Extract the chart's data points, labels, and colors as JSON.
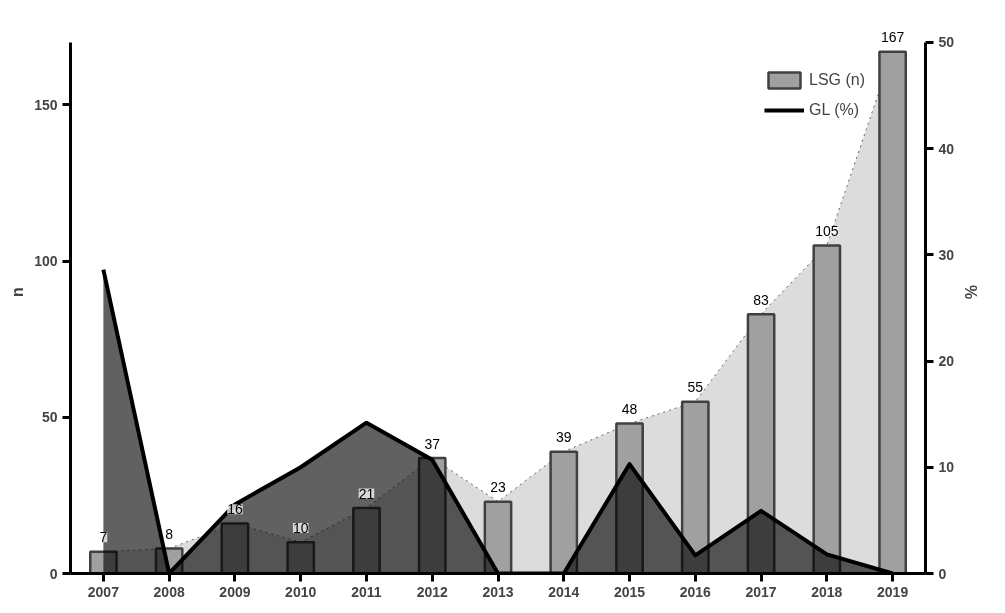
{
  "chart_data": {
    "type": "bar",
    "categories": [
      "2007",
      "2008",
      "2009",
      "2010",
      "2011",
      "2012",
      "2013",
      "2014",
      "2015",
      "2016",
      "2017",
      "2018",
      "2019"
    ],
    "series": [
      {
        "type": "area",
        "color": "#dcdcdc",
        "line_style": "dotted",
        "values": [
          7,
          8,
          16,
          10,
          21,
          37,
          23,
          39,
          48,
          55,
          83,
          105,
          167
        ]
      },
      {
        "name": "LSG (n)",
        "color": "#a0a0a0",
        "values": [
          7,
          8,
          16,
          10,
          21,
          37,
          23,
          39,
          48,
          55,
          83,
          105,
          167
        ],
        "value_labels": [
          "7",
          "8",
          "16",
          "10",
          "21",
          "37",
          "23",
          "39",
          "48",
          "55",
          "83",
          "105",
          "167"
        ]
      },
      {
        "type": "area",
        "name": "GL (%)",
        "axis": "y2",
        "color": "#000000",
        "line_style": "solid",
        "values": [
          28.6,
          0,
          6.5,
          10.0,
          14.2,
          10.7,
          0,
          0,
          10.3,
          1.7,
          5.9,
          1.8,
          0
        ]
      }
    ],
    "ylabel": "n",
    "y2label": "%",
    "ylim": [
      0,
      170
    ],
    "yticks": [
      0,
      50,
      100,
      150
    ],
    "y2lim": [
      0,
      50
    ],
    "y2ticks": [
      0,
      10,
      20,
      30,
      40,
      50
    ],
    "legend": "top right",
    "grid": false
  }
}
